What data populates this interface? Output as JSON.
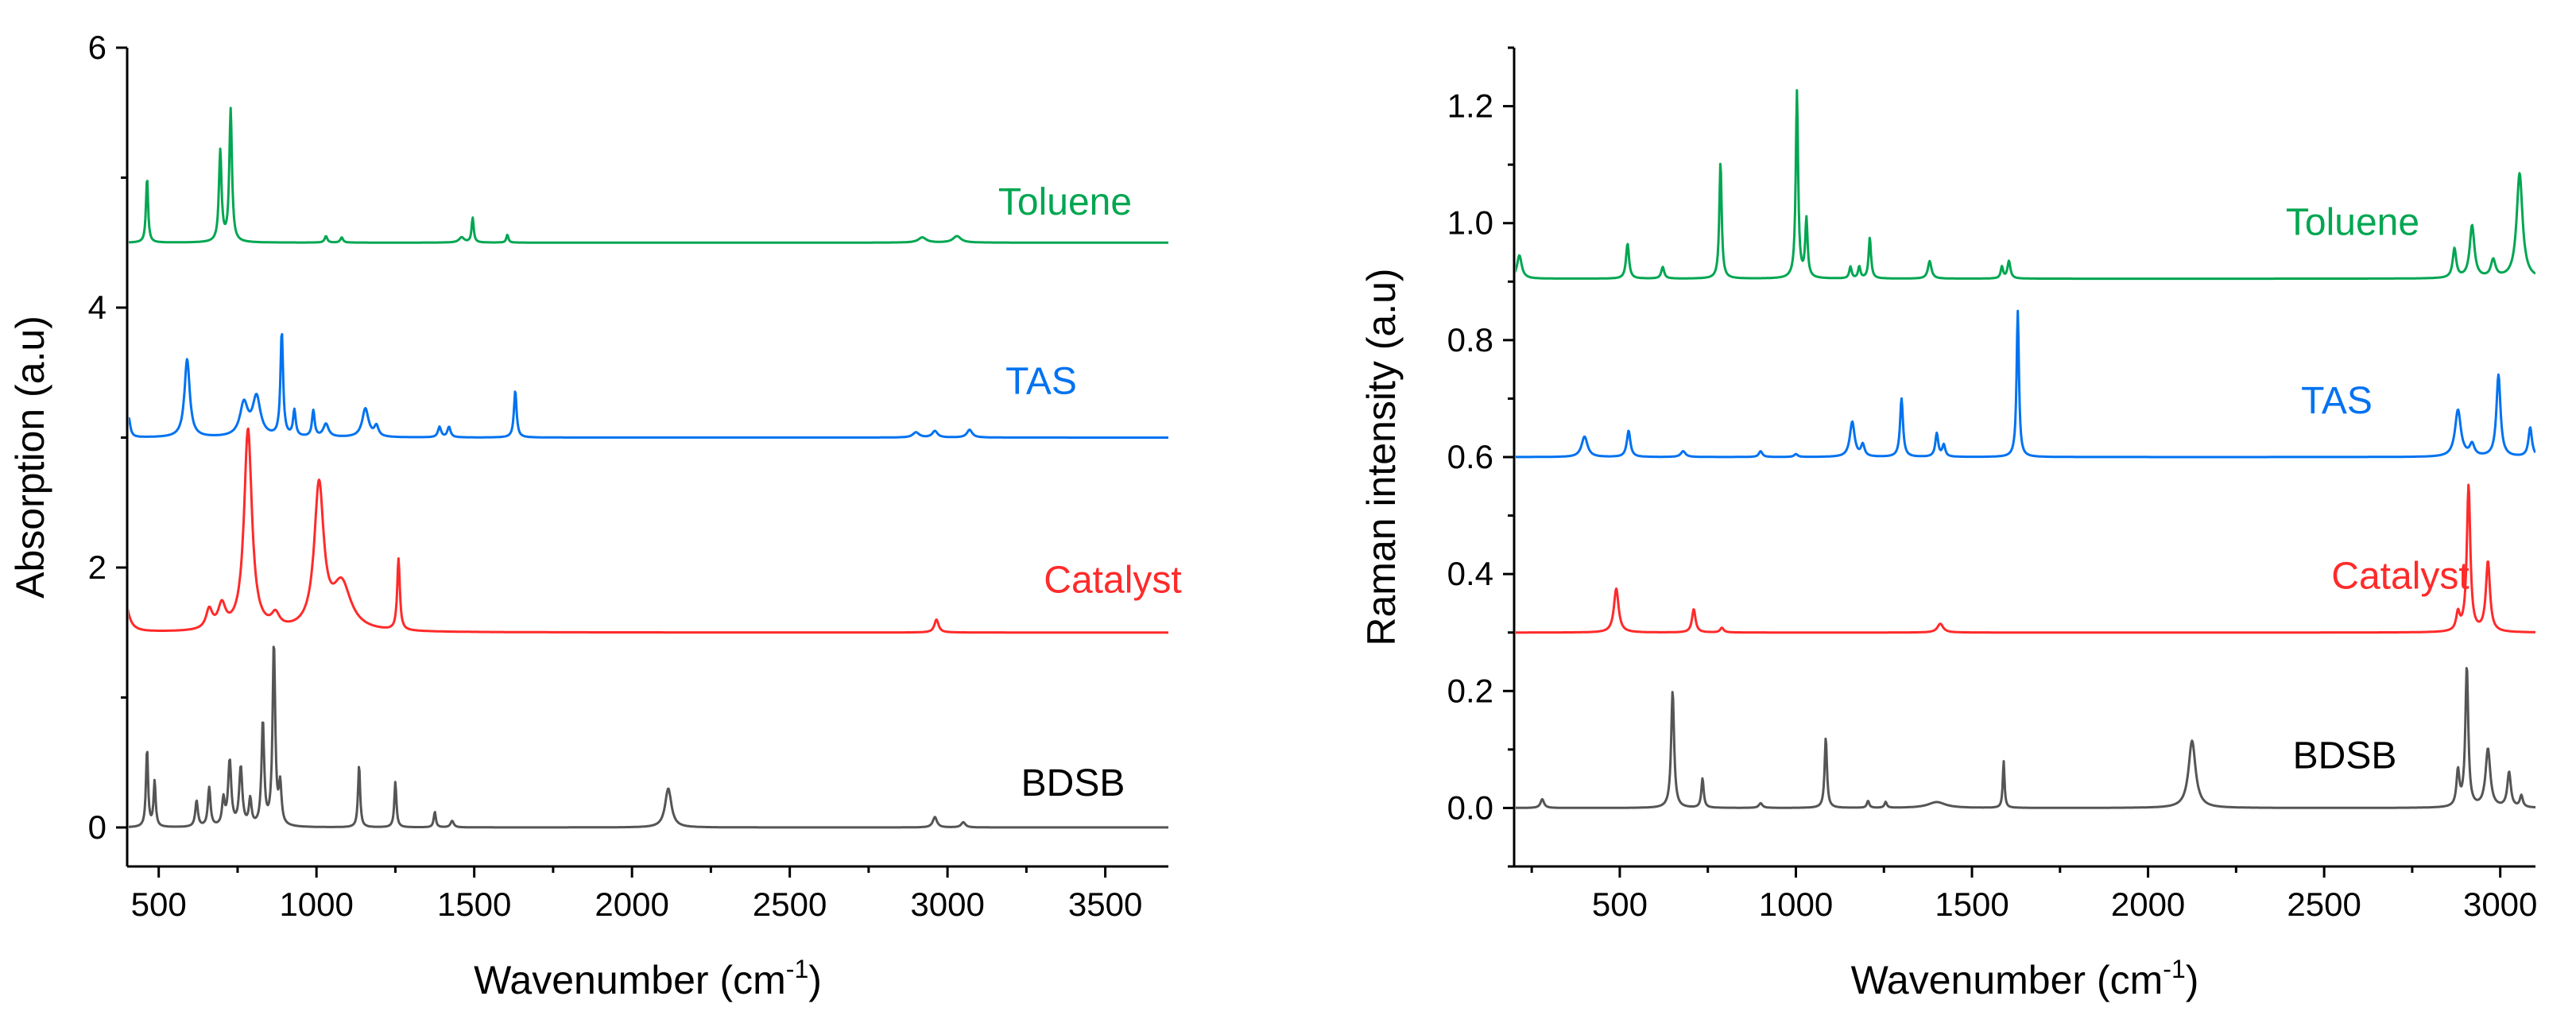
{
  "chart_data": [
    {
      "type": "line",
      "title": "",
      "xlabel": "Wavenumber (cm",
      "xlabel_sup": "-1",
      "xlabel_end": ")",
      "ylabel": "Absorption (a.u)",
      "xlim": [
        400,
        3700
      ],
      "ylim": [
        -0.3,
        6
      ],
      "xticks": [
        500,
        1000,
        1500,
        2000,
        2500,
        3000,
        3500
      ],
      "yticks": [
        0,
        2,
        4,
        6
      ],
      "series": [
        {
          "name": "Toluene",
          "color": "#00a651",
          "baseline": 4.5,
          "peaks": [
            [
              463,
              0.5,
              4
            ],
            [
              695,
              0.7,
              5
            ],
            [
              728,
              1.02,
              5
            ],
            [
              1030,
              0.05,
              5
            ],
            [
              1080,
              0.04,
              5
            ],
            [
              1460,
              0.04,
              10
            ],
            [
              1495,
              0.19,
              4
            ],
            [
              1605,
              0.06,
              4
            ],
            [
              2920,
              0.04,
              15
            ],
            [
              3030,
              0.05,
              15
            ]
          ]
        },
        {
          "name": "TAS",
          "color": "#0072f0",
          "baseline": 3.0,
          "peaks": [
            [
              405,
              0.15,
              6
            ],
            [
              590,
              0.6,
              10
            ],
            [
              770,
              0.25,
              15
            ],
            [
              810,
              0.3,
              15
            ],
            [
              890,
              0.8,
              5
            ],
            [
              930,
              0.2,
              5
            ],
            [
              990,
              0.2,
              5
            ],
            [
              1030,
              0.1,
              10
            ],
            [
              1155,
              0.22,
              12
            ],
            [
              1190,
              0.08,
              8
            ],
            [
              1390,
              0.08,
              6
            ],
            [
              1420,
              0.08,
              6
            ],
            [
              1630,
              0.36,
              5
            ],
            [
              2900,
              0.04,
              12
            ],
            [
              2960,
              0.05,
              10
            ],
            [
              3070,
              0.06,
              10
            ]
          ]
        },
        {
          "name": "Catalyst",
          "color": "#ff2a2a",
          "baseline": 1.5,
          "peaks": [
            [
              390,
              0.3,
              14
            ],
            [
              660,
              0.15,
              12
            ],
            [
              700,
              0.18,
              14
            ],
            [
              783,
              1.55,
              15
            ],
            [
              870,
              0.1,
              15
            ],
            [
              1008,
              1.1,
              18
            ],
            [
              1080,
              0.35,
              35
            ],
            [
              1260,
              0.55,
              5
            ],
            [
              2965,
              0.1,
              8
            ]
          ]
        },
        {
          "name": "BDSB",
          "color": "#555555",
          "baseline": 0.0,
          "peaks": [
            [
              463,
              0.6,
              4
            ],
            [
              487,
              0.35,
              4
            ],
            [
              620,
              0.2,
              5
            ],
            [
              660,
              0.3,
              5
            ],
            [
              705,
              0.2,
              5
            ],
            [
              725,
              0.5,
              6
            ],
            [
              760,
              0.45,
              6
            ],
            [
              790,
              0.2,
              5
            ],
            [
              830,
              0.8,
              5
            ],
            [
              865,
              1.4,
              5
            ],
            [
              885,
              0.3,
              5
            ],
            [
              1135,
              0.48,
              4
            ],
            [
              1250,
              0.35,
              4
            ],
            [
              1375,
              0.12,
              4
            ],
            [
              1430,
              0.05,
              6
            ],
            [
              2115,
              0.3,
              12
            ],
            [
              2960,
              0.08,
              8
            ],
            [
              3050,
              0.04,
              8
            ]
          ]
        }
      ]
    },
    {
      "type": "line",
      "title": "",
      "xlabel": "Wavenumber (cm",
      "xlabel_sup": "-1",
      "xlabel_end": ")",
      "ylabel": "Raman intensity (a.u)",
      "xlim": [
        200,
        3100
      ],
      "ylim": [
        -0.1,
        1.3
      ],
      "xticks": [
        500,
        1000,
        1500,
        2000,
        2500,
        3000
      ],
      "yticks": [
        0.0,
        0.2,
        0.4,
        0.6,
        0.8,
        1.0,
        1.2
      ],
      "ytick_labels": [
        "0.0",
        "0.2",
        "0.4",
        "0.6",
        "0.8",
        "1.0",
        "1.2"
      ],
      "series": [
        {
          "name": "Toluene",
          "color": "#00a651",
          "baseline": 0.905,
          "peaks": [
            [
              215,
              0.04,
              8
            ],
            [
              522,
              0.06,
              5
            ],
            [
              622,
              0.02,
              5
            ],
            [
              786,
              0.2,
              4
            ],
            [
              1003,
              0.32,
              4
            ],
            [
              1030,
              0.1,
              4
            ],
            [
              1155,
              0.02,
              4
            ],
            [
              1180,
              0.02,
              4
            ],
            [
              1210,
              0.07,
              4
            ],
            [
              1380,
              0.03,
              6
            ],
            [
              1585,
              0.02,
              4
            ],
            [
              1605,
              0.03,
              5
            ],
            [
              2870,
              0.05,
              6
            ],
            [
              2920,
              0.09,
              8
            ],
            [
              2980,
              0.03,
              8
            ],
            [
              3055,
              0.18,
              10
            ]
          ]
        },
        {
          "name": "TAS",
          "color": "#0072f0",
          "baseline": 0.6,
          "peaks": [
            [
              400,
              0.035,
              10
            ],
            [
              525,
              0.045,
              6
            ],
            [
              680,
              0.01,
              8
            ],
            [
              900,
              0.01,
              6
            ],
            [
              1000,
              0.005,
              6
            ],
            [
              1160,
              0.06,
              8
            ],
            [
              1190,
              0.02,
              6
            ],
            [
              1300,
              0.1,
              5
            ],
            [
              1400,
              0.04,
              5
            ],
            [
              1420,
              0.02,
              5
            ],
            [
              1630,
              0.25,
              4
            ],
            [
              2880,
              0.08,
              10
            ],
            [
              2920,
              0.02,
              8
            ],
            [
              2995,
              0.14,
              7
            ],
            [
              3085,
              0.05,
              6
            ]
          ]
        },
        {
          "name": "Catalyst",
          "color": "#ff2a2a",
          "baseline": 0.3,
          "peaks": [
            [
              490,
              0.075,
              8
            ],
            [
              710,
              0.04,
              6
            ],
            [
              790,
              0.008,
              6
            ],
            [
              1410,
              0.015,
              10
            ],
            [
              2880,
              0.03,
              6
            ],
            [
              2910,
              0.25,
              6
            ],
            [
              2965,
              0.12,
              7
            ]
          ]
        },
        {
          "name": "BDSB",
          "color": "#555555",
          "baseline": 0.0,
          "peaks": [
            [
              280,
              0.015,
              6
            ],
            [
              650,
              0.2,
              5
            ],
            [
              735,
              0.05,
              4
            ],
            [
              900,
              0.008,
              6
            ],
            [
              1085,
              0.12,
              4
            ],
            [
              1205,
              0.012,
              4
            ],
            [
              1255,
              0.01,
              4
            ],
            [
              1400,
              0.01,
              30
            ],
            [
              1590,
              0.08,
              3
            ],
            [
              2125,
              0.115,
              12
            ],
            [
              2880,
              0.06,
              5
            ],
            [
              2905,
              0.24,
              5
            ],
            [
              2965,
              0.1,
              8
            ],
            [
              3025,
              0.06,
              6
            ],
            [
              3060,
              0.02,
              5
            ]
          ]
        }
      ]
    }
  ]
}
